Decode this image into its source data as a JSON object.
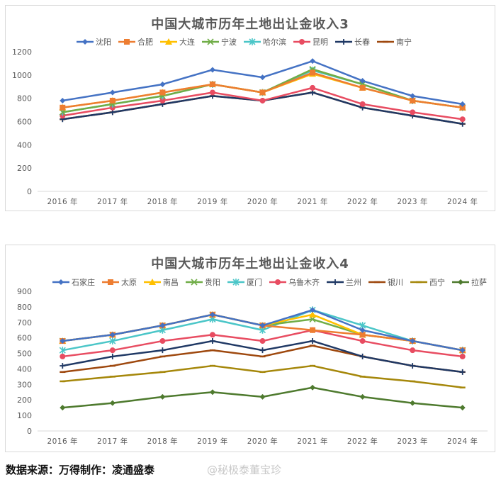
{
  "chart_data": [
    {
      "type": "line",
      "title": "中国大城市历年土地出让金收入3",
      "categories": [
        "2016 年",
        "2017 年",
        "2018 年",
        "2019 年",
        "2020 年",
        "2021 年",
        "2022 年",
        "2023 年",
        "2024 年"
      ],
      "ylim": [
        0,
        1200
      ],
      "yticks": [
        0,
        200,
        400,
        600,
        800,
        1000,
        1200
      ],
      "grid": false,
      "legend": "top",
      "xlabel": "",
      "ylabel": "",
      "series": [
        {
          "name": "沈阳",
          "color": "#4472c4",
          "marker": "diamond",
          "values": [
            780,
            850,
            920,
            1045,
            980,
            1120,
            950,
            820,
            750
          ]
        },
        {
          "name": "合肥",
          "color": "#ed7d31",
          "marker": "square",
          "values": [
            720,
            780,
            850,
            920,
            850,
            1020,
            890,
            780,
            720
          ]
        },
        {
          "name": "大连",
          "color": "#ffc000",
          "marker": "triangle",
          "values": [
            720,
            780,
            850,
            920,
            850,
            1010,
            890,
            780,
            720
          ]
        },
        {
          "name": "宁波",
          "color": "#70ad47",
          "marker": "x",
          "values": [
            680,
            750,
            820,
            920,
            850,
            1050,
            920,
            780,
            720
          ]
        },
        {
          "name": "哈尔滨",
          "color": "#4bc6c8",
          "marker": "star",
          "values": [
            680,
            750,
            820,
            920,
            850,
            1040,
            920,
            780,
            720
          ]
        },
        {
          "name": "昆明",
          "color": "#e84c61",
          "marker": "circle",
          "values": [
            650,
            720,
            780,
            850,
            780,
            890,
            750,
            680,
            620
          ]
        },
        {
          "name": "长春",
          "color": "#1f3864",
          "marker": "plus",
          "values": [
            620,
            680,
            750,
            820,
            780,
            850,
            720,
            650,
            580
          ]
        },
        {
          "name": "南宁",
          "color": "#9e480e",
          "marker": "dash",
          "values": [
            620,
            680,
            750,
            820,
            780,
            850,
            720,
            650,
            580
          ]
        }
      ]
    },
    {
      "type": "line",
      "title": "中国大城市历年土地出让金收入4",
      "categories": [
        "2016 年",
        "2017 年",
        "2018 年",
        "2019 年",
        "2020 年",
        "2021 年",
        "2022 年",
        "2023 年",
        "2024 年"
      ],
      "ylim": [
        0,
        900
      ],
      "yticks": [
        0,
        100,
        200,
        300,
        400,
        500,
        600,
        700,
        800,
        900
      ],
      "grid": false,
      "legend": "top",
      "xlabel": "",
      "ylabel": "",
      "series": [
        {
          "name": "石家庄",
          "color": "#4472c4",
          "marker": "diamond",
          "values": [
            580,
            620,
            680,
            750,
            680,
            780,
            650,
            580,
            520
          ]
        },
        {
          "name": "太原",
          "color": "#ed7d31",
          "marker": "square",
          "values": [
            580,
            620,
            680,
            750,
            680,
            650,
            620,
            580,
            520
          ]
        },
        {
          "name": "南昌",
          "color": "#ffc000",
          "marker": "triangle",
          "values": [
            580,
            620,
            680,
            750,
            680,
            750,
            620,
            580,
            520
          ]
        },
        {
          "name": "贵阳",
          "color": "#70ad47",
          "marker": "x",
          "values": [
            580,
            620,
            680,
            750,
            680,
            720,
            620,
            580,
            520
          ]
        },
        {
          "name": "厦门",
          "color": "#4bc6c8",
          "marker": "star",
          "values": [
            520,
            580,
            650,
            720,
            650,
            780,
            680,
            580,
            520
          ]
        },
        {
          "name": "乌鲁木齐",
          "color": "#e84c61",
          "marker": "circle",
          "values": [
            480,
            520,
            580,
            620,
            580,
            650,
            580,
            520,
            480
          ]
        },
        {
          "name": "兰州",
          "color": "#1f3864",
          "marker": "plus",
          "values": [
            420,
            480,
            520,
            580,
            520,
            580,
            480,
            420,
            380
          ]
        },
        {
          "name": "银川",
          "color": "#9e480e",
          "marker": "dash",
          "values": [
            380,
            420,
            480,
            520,
            480,
            550,
            480,
            420,
            380
          ]
        },
        {
          "name": "西宁",
          "color": "#a5870a",
          "marker": "dash",
          "values": [
            320,
            350,
            380,
            420,
            380,
            420,
            350,
            320,
            280
          ]
        },
        {
          "name": "拉萨",
          "color": "#4e7a2e",
          "marker": "diamond",
          "values": [
            150,
            180,
            220,
            250,
            220,
            280,
            220,
            180,
            150
          ]
        }
      ]
    }
  ],
  "footer": {
    "source": "数据来源：万得制作：凌通盛泰",
    "watermark": "@秘极泰董宝珍"
  }
}
